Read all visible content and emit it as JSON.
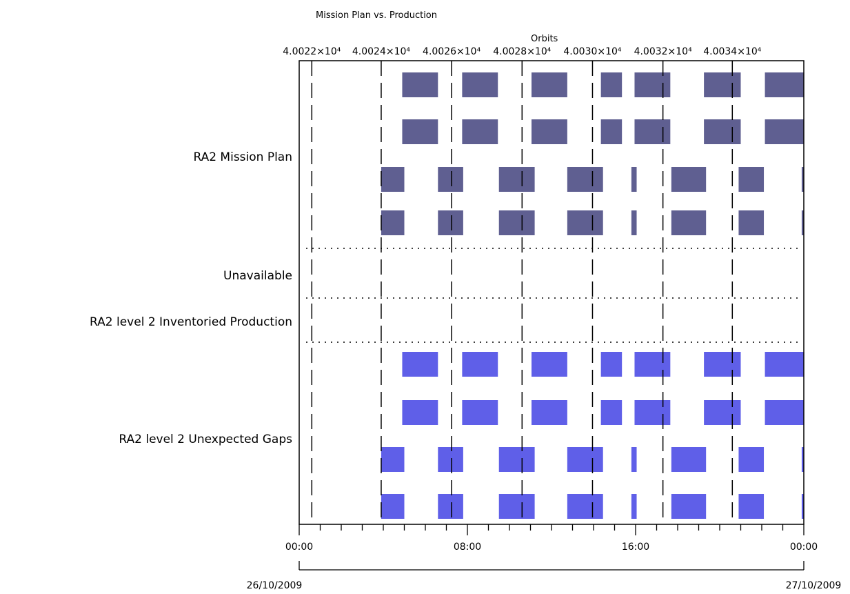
{
  "chart_data": {
    "type": "timeline",
    "title": "Mission Plan vs. Production",
    "top_axis": {
      "label": "Orbits",
      "tick_labels": [
        "4.0022×10⁴",
        "4.0024×10⁴",
        "4.0026×10⁴",
        "4.0028×10⁴",
        "4.0030×10⁴",
        "4.0032×10⁴",
        "4.0034×10⁴"
      ]
    },
    "bottom_axis": {
      "range_hours": [
        0,
        24
      ],
      "tick_labels": [
        "00:00",
        "08:00",
        "16:00",
        "00:00"
      ],
      "tick_hours": [
        0,
        8,
        16,
        24
      ],
      "date_start": "26/10/2009",
      "date_end": "27/10/2009"
    },
    "orbit_boundaries_hours": [
      0.6,
      3.9,
      7.25,
      10.6,
      13.95,
      17.3,
      20.6
    ],
    "row_groups": [
      {
        "label": "RA2 Mission Plan",
        "rows": 4,
        "color": "#5f5f91"
      },
      {
        "label": "Unavailable",
        "rows": 1,
        "color": "#5f5f91"
      },
      {
        "label": "RA2 level 2 Inventoried Production",
        "rows": 1,
        "color": "#5f5fe8"
      },
      {
        "label": "RA2 level 2 Unexpected Gaps",
        "rows": 4,
        "color": "#5f5fe8"
      }
    ],
    "series": [
      {
        "name": "RA2 Mission Plan",
        "color": "#5f5f91",
        "rows": [
          [
            [
              4.9,
              6.6
            ],
            [
              7.75,
              9.45
            ],
            [
              11.05,
              12.75
            ],
            [
              14.35,
              15.35
            ],
            [
              15.95,
              17.65
            ],
            [
              19.25,
              21.0
            ],
            [
              22.15,
              24.0
            ]
          ],
          [
            [
              4.9,
              6.6
            ],
            [
              7.75,
              9.45
            ],
            [
              11.05,
              12.75
            ],
            [
              14.35,
              15.35
            ],
            [
              15.95,
              17.65
            ],
            [
              19.25,
              21.0
            ],
            [
              22.15,
              24.0
            ]
          ],
          [
            [
              3.9,
              5.0
            ],
            [
              6.6,
              7.8
            ],
            [
              9.5,
              11.2
            ],
            [
              12.75,
              14.45
            ],
            [
              15.8,
              16.05
            ],
            [
              17.7,
              19.35
            ],
            [
              20.9,
              22.1
            ],
            [
              23.9,
              24.0
            ]
          ],
          [
            [
              3.9,
              5.0
            ],
            [
              6.6,
              7.8
            ],
            [
              9.5,
              11.2
            ],
            [
              12.75,
              14.45
            ],
            [
              15.8,
              16.05
            ],
            [
              17.7,
              19.35
            ],
            [
              20.9,
              22.1
            ],
            [
              23.9,
              24.0
            ]
          ]
        ]
      },
      {
        "name": "RA2 level 2 Unexpected Gaps",
        "color": "#5f5fe8",
        "rows": [
          [
            [
              4.9,
              6.6
            ],
            [
              7.75,
              9.45
            ],
            [
              11.05,
              12.75
            ],
            [
              14.35,
              15.35
            ],
            [
              15.95,
              17.65
            ],
            [
              19.25,
              21.0
            ],
            [
              22.15,
              24.0
            ]
          ],
          [
            [
              4.9,
              6.6
            ],
            [
              7.75,
              9.45
            ],
            [
              11.05,
              12.75
            ],
            [
              14.35,
              15.35
            ],
            [
              15.95,
              17.65
            ],
            [
              19.25,
              21.0
            ],
            [
              22.15,
              24.0
            ]
          ],
          [
            [
              3.9,
              5.0
            ],
            [
              6.6,
              7.8
            ],
            [
              9.5,
              11.2
            ],
            [
              12.75,
              14.45
            ],
            [
              15.8,
              16.05
            ],
            [
              17.7,
              19.35
            ],
            [
              20.9,
              22.1
            ],
            [
              23.9,
              24.0
            ]
          ],
          [
            [
              3.9,
              5.0
            ],
            [
              6.6,
              7.8
            ],
            [
              9.5,
              11.2
            ],
            [
              12.75,
              14.45
            ],
            [
              15.8,
              16.05
            ],
            [
              17.7,
              19.35
            ],
            [
              20.9,
              22.1
            ],
            [
              23.9,
              24.0
            ]
          ]
        ]
      }
    ]
  }
}
